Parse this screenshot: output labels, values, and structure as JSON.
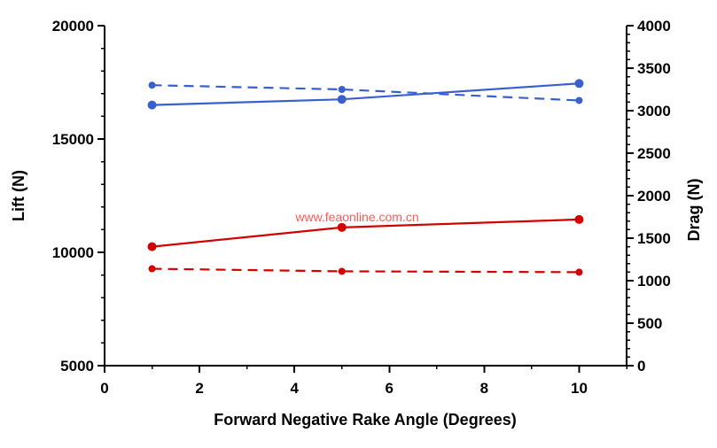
{
  "watermark": {
    "text": "www.feaonline.com.cn",
    "color": "#ff5a5a"
  },
  "chart_data": {
    "type": "line",
    "title": "",
    "xlabel": "Forward Negative Rake Angle (Degrees)",
    "x": [
      1,
      5,
      10
    ],
    "xlim": [
      0,
      11
    ],
    "x_major_ticks": [
      0,
      2,
      4,
      6,
      8,
      10
    ],
    "x_minor_ticks": [
      1,
      3,
      5,
      7,
      9,
      11
    ],
    "grid": false,
    "legend": "none",
    "axis_color": "#000000",
    "left_axis": {
      "label": "Lift (N)",
      "lim": [
        5000,
        20000
      ],
      "major_ticks": [
        5000,
        10000,
        15000,
        20000
      ],
      "minor_step": 1000
    },
    "right_axis": {
      "label": "Drag (N)",
      "lim": [
        0,
        4000
      ],
      "major_ticks": [
        0,
        500,
        1000,
        1500,
        2000,
        2500,
        3000,
        3500,
        4000
      ],
      "minor_step": 100
    },
    "series": [
      {
        "name": "blue-solid-lift",
        "axis": "left",
        "style": "solid",
        "color": "#3a5fce",
        "values": [
          16500,
          16750,
          17450
        ]
      },
      {
        "name": "blue-dashed-drag",
        "axis": "right",
        "style": "dashed",
        "color": "#3a5fce",
        "values": [
          3300,
          3250,
          3120
        ]
      },
      {
        "name": "red-solid-lift",
        "axis": "left",
        "style": "solid",
        "color": "#d40000",
        "values": [
          10250,
          11100,
          11450
        ]
      },
      {
        "name": "red-dashed-drag",
        "axis": "right",
        "style": "dashed",
        "color": "#d40000",
        "values": [
          1140,
          1110,
          1100
        ]
      }
    ]
  }
}
